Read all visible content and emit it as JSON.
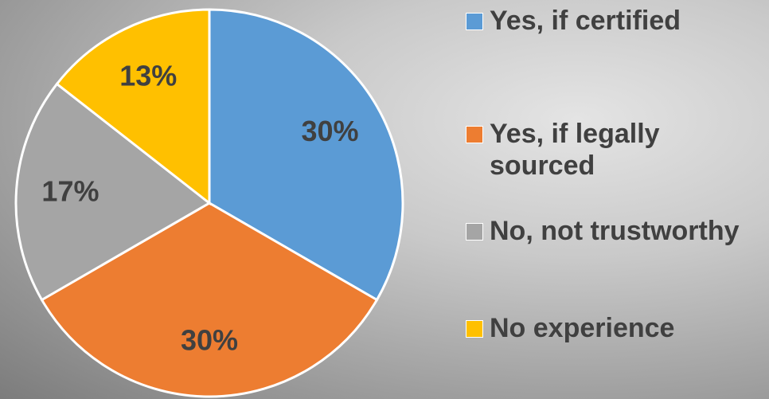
{
  "chart_data": {
    "type": "pie",
    "categories": [
      "Yes, if certified",
      "Yes, if legally sourced",
      "No, not trustworthy",
      "No experience"
    ],
    "values": [
      30,
      30,
      17,
      13
    ],
    "value_labels": [
      "30%",
      "30%",
      "17%",
      "13%"
    ],
    "colors": [
      "#5b9bd5",
      "#ed7d31",
      "#a5a5a5",
      "#ffc000"
    ],
    "legend": "right"
  }
}
